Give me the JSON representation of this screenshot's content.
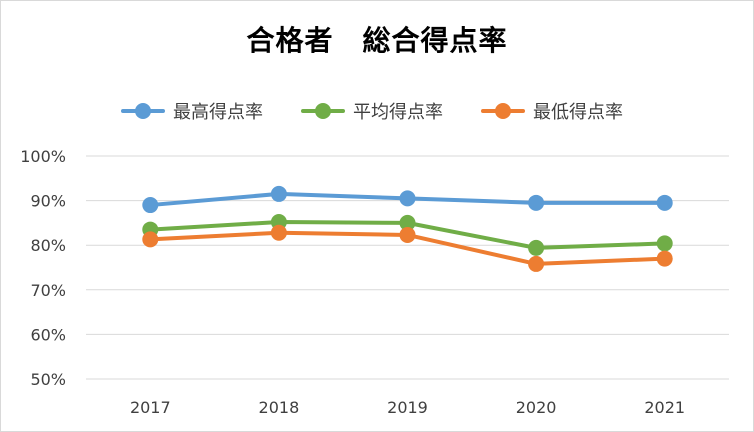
{
  "chart_data": {
    "type": "line",
    "title": "合格者　総合得点率",
    "categories": [
      "2017",
      "2018",
      "2019",
      "2020",
      "2021"
    ],
    "series": [
      {
        "name": "最高得点率",
        "color": "#5b9bd5",
        "values": [
          89,
          91.5,
          90.5,
          89.5,
          89.5
        ]
      },
      {
        "name": "平均得点率",
        "color": "#70ad47",
        "values": [
          83.5,
          85.2,
          85,
          79.4,
          80.4
        ]
      },
      {
        "name": "最低得点率",
        "color": "#ed7d31",
        "values": [
          81.3,
          82.8,
          82.3,
          75.8,
          77
        ]
      }
    ],
    "ylim": [
      50,
      100
    ],
    "y_ticks": [
      100,
      90,
      80,
      70,
      60,
      50
    ],
    "y_tick_labels": [
      "100%",
      "90%",
      "80%",
      "70%",
      "60%",
      "50%"
    ],
    "grid": true,
    "grid_color": "#d9d9d9",
    "legend_position": "top"
  }
}
